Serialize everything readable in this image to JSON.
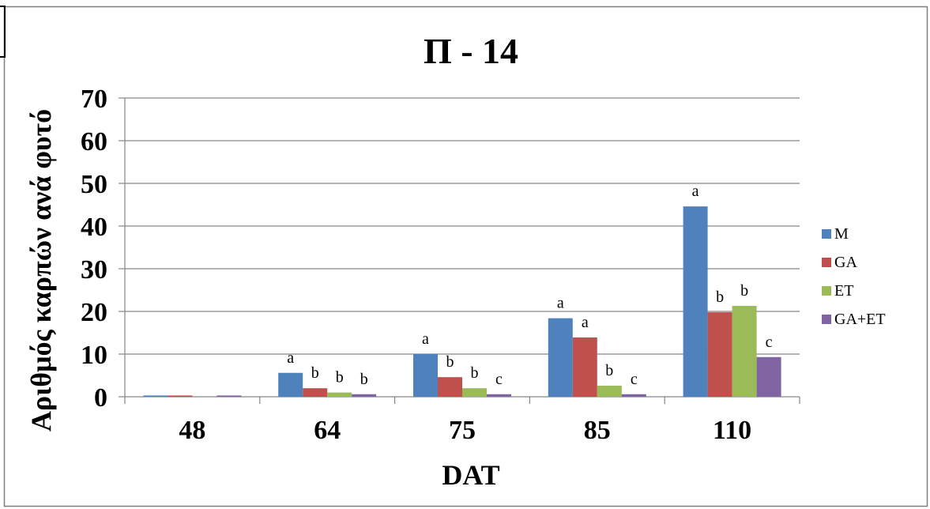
{
  "chart_data": {
    "type": "bar",
    "title": "Π - 14",
    "xlabel": "DAT",
    "ylabel": "Αριθμός καρπών ανά φυτό",
    "categories": [
      "48",
      "64",
      "75",
      "85",
      "110"
    ],
    "ylim": [
      0,
      70
    ],
    "yticks": [
      "0",
      "10",
      "20",
      "30",
      "40",
      "50",
      "60",
      "70"
    ],
    "grid": true,
    "legend_position": "right",
    "series": [
      {
        "name": "M",
        "color": "#4F81BD",
        "values": [
          0.3,
          5.6,
          10.0,
          18.4,
          44.6
        ],
        "labels": [
          "",
          "a",
          "a",
          "a",
          "a"
        ]
      },
      {
        "name": "GA",
        "color": "#C0504D",
        "values": [
          0.3,
          2.0,
          4.6,
          13.9,
          19.8
        ],
        "labels": [
          "",
          "b",
          "b",
          "a",
          "b"
        ]
      },
      {
        "name": "ET",
        "color": "#9BBB59",
        "values": [
          0.0,
          1.0,
          2.0,
          2.6,
          21.3
        ],
        "labels": [
          "",
          "b",
          "b",
          "b",
          "b"
        ]
      },
      {
        "name": "GA+ET",
        "color": "#8064A2",
        "values": [
          0.3,
          0.6,
          0.6,
          0.6,
          9.3
        ],
        "labels": [
          "",
          "b",
          "c",
          "c",
          "c"
        ]
      }
    ]
  }
}
